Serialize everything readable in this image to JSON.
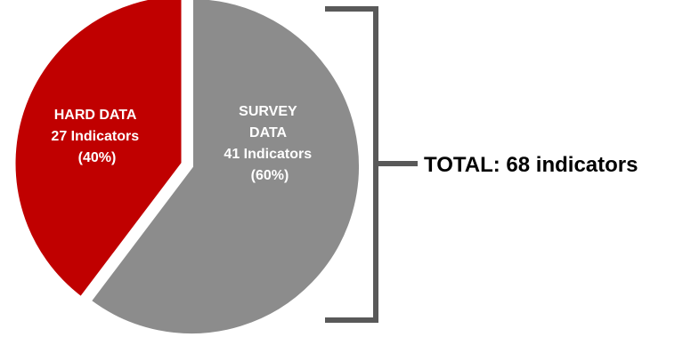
{
  "chart_data": {
    "type": "pie",
    "slices": [
      {
        "key": "hard",
        "lines": [
          "HARD DATA",
          "27 Indicators",
          "(40%)"
        ],
        "value": 27,
        "percent": 40,
        "color": "#c00000",
        "label_color": "#ffffff"
      },
      {
        "key": "survey",
        "lines": [
          "SURVEY",
          "DATA",
          "41 Indicators",
          "(60%)"
        ],
        "value": 41,
        "percent": 60,
        "color": "#8c8c8c",
        "label_color": "#ffffff"
      }
    ],
    "annotation": {
      "text": "TOTAL: 68 indicators",
      "color": "#000000"
    },
    "bracket_color": "#595959",
    "slice_separator_color": "#ffffff"
  }
}
